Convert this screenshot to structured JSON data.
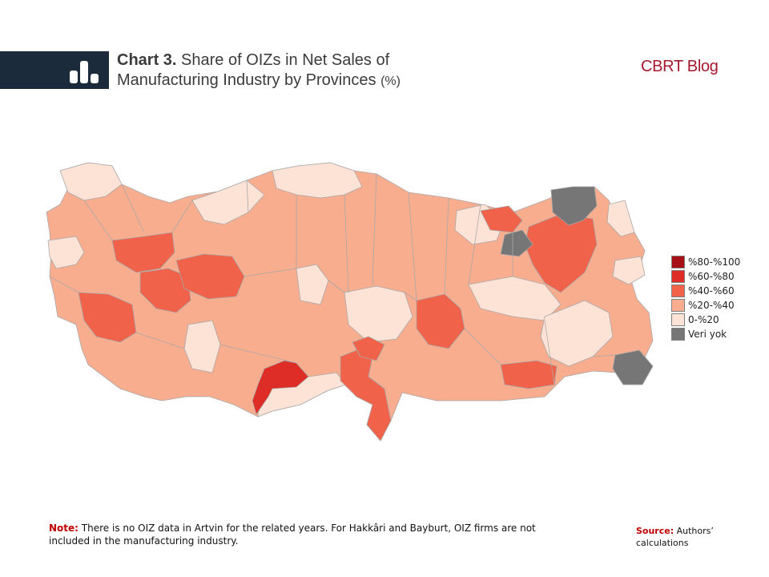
{
  "header": {
    "chart_number": "Chart 3.",
    "title_line1": "Share of OIZs in Net Sales of",
    "title_line2": "Manufacturing Industry by Provinces",
    "title_unit": "(%)",
    "brand": "CBRT Blog",
    "banner_color": "#1c2b3c",
    "brand_color": "#a6192e"
  },
  "legend": {
    "items": [
      {
        "label": "%80-%100",
        "color": "#a50f15"
      },
      {
        "label": "%60-%80",
        "color": "#de2d26"
      },
      {
        "label": "%40-%60",
        "color": "#f0624a"
      },
      {
        "label": "%20-%40",
        "color": "#f9ad8f"
      },
      {
        "label": "0-%20",
        "color": "#fde2d6"
      },
      {
        "label": "Veri yok",
        "color": "#767676"
      }
    ]
  },
  "map": {
    "provinces_no_data": [
      "Artvin",
      "Hakkâri",
      "Bayburt"
    ]
  },
  "note": {
    "label": "Note:",
    "text": "There is no OIZ data in Artvin for the related years. For Hakkâri and Bayburt, OIZ firms are not included in the manufacturing industry."
  },
  "source": {
    "label": "Source:",
    "text": "Authors’ calculations"
  }
}
